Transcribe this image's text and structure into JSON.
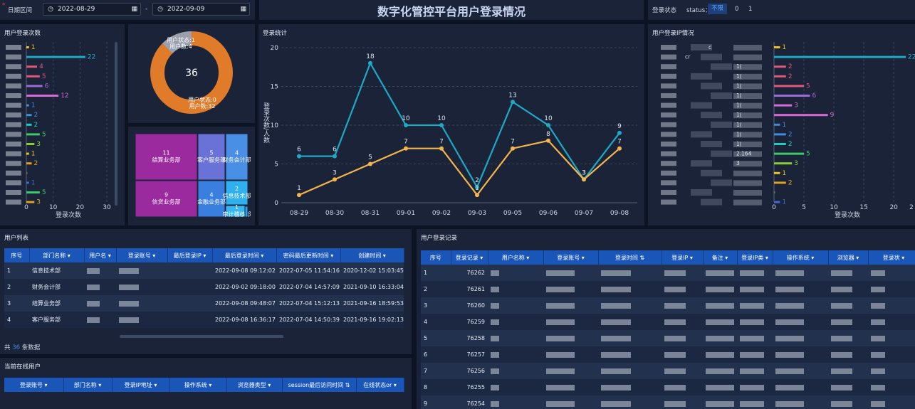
{
  "header": {
    "date_label": "日期区间",
    "date_start": "2022-08-29",
    "date_sep": "-",
    "date_end": "2022-09-09",
    "title": "数字化管控平台用户登录情况",
    "status_label": "登录状态",
    "status_key": "status：",
    "status_opts": [
      "不限",
      "0",
      "1"
    ]
  },
  "login_count": {
    "title": "用户登录次数",
    "values": [
      1,
      22,
      4,
      5,
      6,
      12,
      1,
      2,
      2,
      5,
      3,
      1,
      2,
      0,
      1,
      5,
      3
    ],
    "xticks": [
      "0",
      "10",
      "20",
      "30"
    ],
    "xlabel": "登录次数",
    "colors": [
      "#f2c21a",
      "#1ea9c6",
      "#e0577a",
      "#e0577a",
      "#9b6ad6",
      "#d86ad6",
      "#3f8be0",
      "#3f8be0",
      "#1ec9c0",
      "#3ec96b",
      "#8ccb35",
      "#f2c21a",
      "#e0a020",
      "#6b6b6b",
      "#3f6ad6",
      "#3ec96b",
      "#e0a020"
    ]
  },
  "donut": {
    "total": "36",
    "s1_l1": "用户状态:1",
    "s1_l2": "用户数:4",
    "s0_l1": "用户状态:0",
    "s0_l2": "用户数:32",
    "c0": "#e07b2a",
    "c1": "#9aa0ad",
    "v0": 32,
    "v1": 4
  },
  "treemap": {
    "cells": [
      {
        "v": "11",
        "n": "结算业务部",
        "c": "#9a2a9e"
      },
      {
        "v": "5",
        "n": "客户服务部",
        "c": "#6a72d8"
      },
      {
        "v": "4",
        "n": "财务会计部",
        "c": "#4a8fe6"
      },
      {
        "v": "9",
        "n": "信贷业务部",
        "c": "#9a2a9e"
      },
      {
        "v": "4",
        "n": "金融业务部",
        "c": "#3a7fe0"
      },
      {
        "v": "2",
        "n": "信息技术部",
        "c": "#2fb0f0"
      },
      {
        "v": "1",
        "n": "审计稽核部",
        "c": "#36b8f5"
      },
      {
        "v": "",
        "n": "",
        "c": "#2aa4ec"
      }
    ]
  },
  "chart_data": {
    "type": "line",
    "title": "登录统计",
    "ylabel": "登录次数/人数",
    "categories": [
      "08-29",
      "08-30",
      "08-31",
      "09-01",
      "09-02",
      "09-03",
      "09-05",
      "09-06",
      "09-07",
      "09-08"
    ],
    "ylim": [
      0,
      20
    ],
    "yticks": [
      "0",
      "5",
      "10",
      "15",
      "20"
    ],
    "series": [
      {
        "color": "#1ea9c6",
        "values": [
          6,
          6,
          18,
          10,
          10,
          2,
          13,
          10,
          3,
          9
        ]
      },
      {
        "color": "#f5b54a",
        "values": [
          1,
          3,
          5,
          7,
          7,
          1,
          7,
          8,
          3,
          7
        ]
      }
    ]
  },
  "ip": {
    "title": "用户登录IP情况",
    "values": [
      1,
      22,
      2,
      2,
      5,
      6,
      3,
      9,
      1,
      2,
      2,
      5,
      3,
      1,
      2,
      0,
      1
    ],
    "frag": [
      "c",
      "cr",
      "1(",
      "1(",
      "1(",
      "1(",
      "1(",
      "1(",
      "1(",
      "1(",
      "1(",
      "2.164",
      "3"
    ],
    "xticks": [
      "0",
      "5",
      "10",
      "15",
      "20",
      "2"
    ],
    "xlabel": "登录次数",
    "colors": [
      "#f2c21a",
      "#1ea9c6",
      "#e0577a",
      "#e0577a",
      "#e0577a",
      "#9b6ad6",
      "#d86ad6",
      "#d86ad6",
      "#3f8be0",
      "#3f8be0",
      "#1ec9c0",
      "#3ec96b",
      "#8ccb35",
      "#f2c21a",
      "#e0a020",
      "#6b6b6b",
      "#3f6ad6"
    ]
  },
  "user_list": {
    "title": "用户列表",
    "headers": [
      "序号",
      "部门名称 ▾",
      "用户名 ▾",
      "登录账号 ▾",
      "最后登录IP ▾",
      "最后登录时间 ▾",
      "密码最后更新时间 ▾",
      "创建时间 ▾"
    ],
    "rows": [
      {
        "n": "1",
        "dept": "信息技术部",
        "last": "2022-09-08 09:12:02",
        "pwd": "2022-07-05 11:54:16",
        "created": "2020-12-02 15:03:45"
      },
      {
        "n": "2",
        "dept": "财务会计部",
        "last": "2022-09-02 09:18:00",
        "pwd": "2022-07-04 14:57:09",
        "created": "2021-09-10 16:33:04"
      },
      {
        "n": "3",
        "dept": "结算业务部",
        "last": "2022-09-08 09:48:07",
        "pwd": "2022-07-04 15:12:13",
        "created": "2021-09-16 18:59:53"
      },
      {
        "n": "4",
        "dept": "客户服务部",
        "last": "2022-09-08 16:36:17",
        "pwd": "2022-07-04 14:50:39",
        "created": "2021-09-16 19:02:13"
      }
    ],
    "total_pre": "共",
    "total_num": "36",
    "total_post": "条数据"
  },
  "online": {
    "title": "当前在线用户",
    "headers": [
      "登录账号 ▾",
      "部门名称 ▾",
      "登录IP地址 ▾",
      "操作系统 ▾",
      "浏览器类型 ▾",
      "session最后访问时间 ⇅",
      "在线状态or ▾"
    ]
  },
  "records": {
    "title": "用户登录记录",
    "headers": [
      "序号",
      "登录记录 ▾",
      "用户名称 ▾",
      "登录账号 ▾",
      "登录时间 ⇅",
      "登录IP ▾",
      "备注 ▾",
      "登录IP类 ▾",
      "操作系统 ▾",
      "浏览器 ▾",
      "登录状 ▾"
    ],
    "rows": [
      [
        "1",
        "76262"
      ],
      [
        "2",
        "76261"
      ],
      [
        "3",
        "76260"
      ],
      [
        "4",
        "76259"
      ],
      [
        "5",
        "76258"
      ],
      [
        "6",
        "76257"
      ],
      [
        "7",
        "76256"
      ],
      [
        "8",
        "76255"
      ],
      [
        "9",
        "76254"
      ]
    ]
  }
}
